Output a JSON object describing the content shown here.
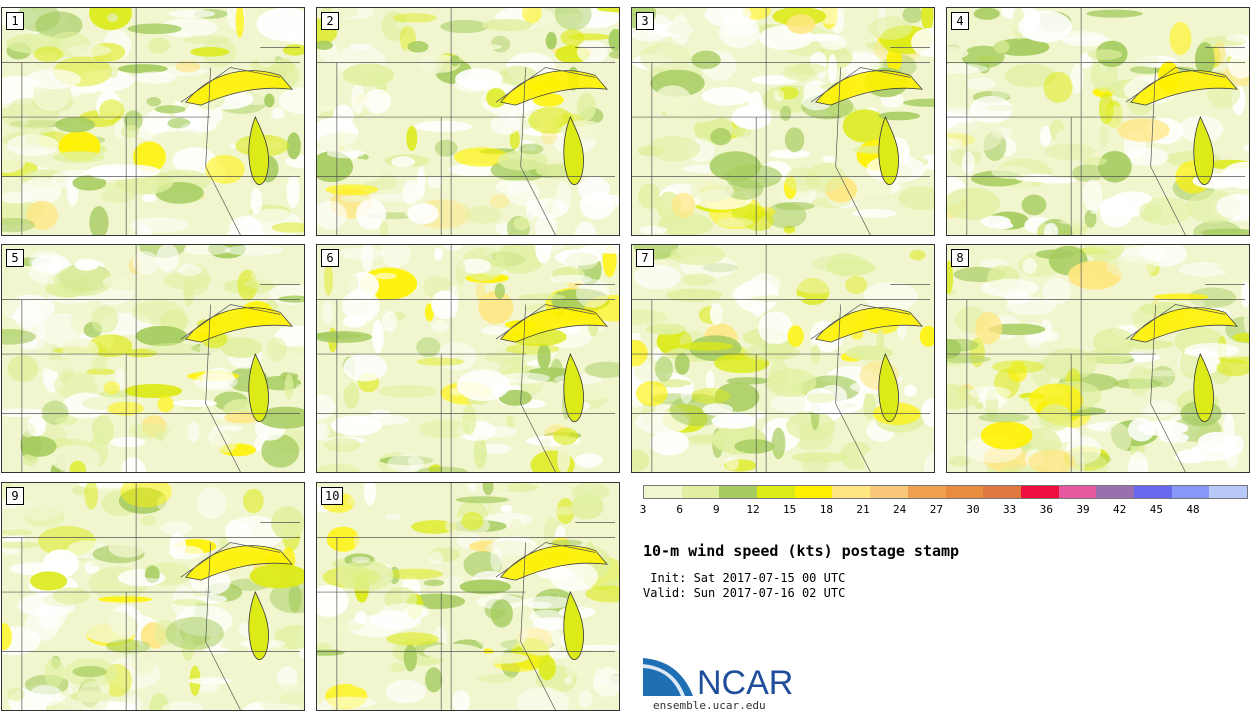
{
  "panels": [
    {
      "label": "1",
      "seed": 11
    },
    {
      "label": "2",
      "seed": 23
    },
    {
      "label": "3",
      "seed": 37
    },
    {
      "label": "4",
      "seed": 41
    },
    {
      "label": "5",
      "seed": 53
    },
    {
      "label": "6",
      "seed": 67
    },
    {
      "label": "7",
      "seed": 71
    },
    {
      "label": "8",
      "seed": 83
    },
    {
      "label": "9",
      "seed": 97
    },
    {
      "label": "10",
      "seed": 101
    }
  ],
  "colorbar": {
    "colors": [
      "#f1f6cf",
      "#e0f0a0",
      "#a6cc60",
      "#dcea18",
      "#fff200",
      "#ffe680",
      "#f8c878",
      "#f0a050",
      "#e88c40",
      "#e07840",
      "#f01040",
      "#e858a0",
      "#9870b0",
      "#6868f0",
      "#8898f8",
      "#b8c8f8"
    ],
    "ticks": [
      "3",
      "6",
      "9",
      "12",
      "15",
      "18",
      "21",
      "24",
      "27",
      "30",
      "33",
      "36",
      "39",
      "42",
      "45",
      "48"
    ]
  },
  "title": "10-m wind speed (kts) postage stamp",
  "init": " Init: Sat 2017-07-15 00 UTC",
  "valid": "Valid: Sun 2017-07-16 02 UTC",
  "logo": {
    "text": "NCAR",
    "url": "ensemble.ucar.edu",
    "swoosh_color": "#1f6fb5",
    "text_color": "#1f4e9a"
  }
}
